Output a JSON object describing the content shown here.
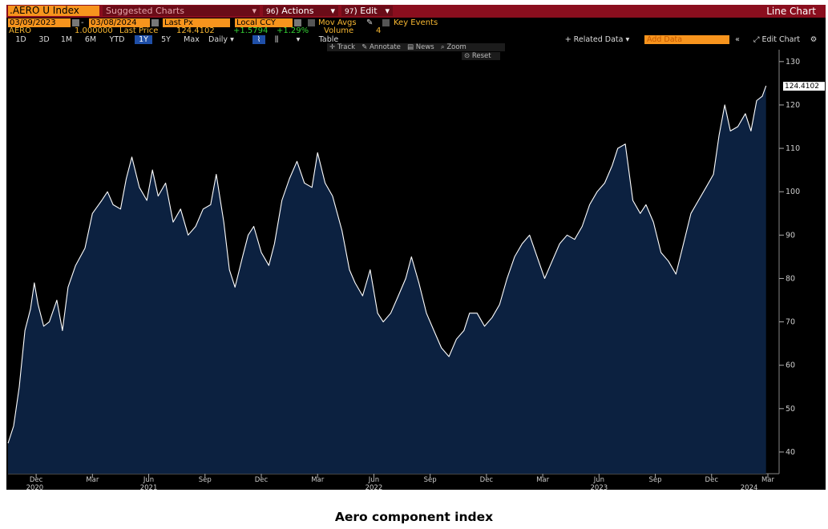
{
  "header": {
    "ticker": ".AERO U Index",
    "suggested_charts": "Suggested Charts",
    "actions_num": "96",
    "actions": "Actions",
    "edit_num": "97",
    "edit": "Edit",
    "chart_type": "Line Chart"
  },
  "settings": {
    "start_date": "03/09/2023",
    "end_date": "03/08/2024",
    "field": "Last Px",
    "currency": "Local CCY",
    "mov_avgs": "Mov Avgs",
    "key_events": "Key Events"
  },
  "legend": {
    "security": "AERO",
    "multiplier": "1.000000",
    "last_price_label": "Last Price",
    "last_price": "124.4102",
    "change": "+1.5794",
    "change_pct": "+1.29%",
    "volume_label": "Volume",
    "volume": "4"
  },
  "toolbar": {
    "ranges": [
      "1D",
      "3D",
      "1M",
      "6M",
      "YTD",
      "1Y",
      "5Y",
      "Max"
    ],
    "active_range": "1Y",
    "frequency": "Daily",
    "table": "Table",
    "related_data": "+ Related Data",
    "add_data_placeholder": "Add Data",
    "edit_chart": "Edit Chart"
  },
  "subtoolbar": {
    "track": "Track",
    "annotate": "Annotate",
    "news": "News",
    "zoom": "Zoom",
    "reset": "Reset"
  },
  "colors": {
    "background": "#000000",
    "area_fill": "#0c2140",
    "line": "#ffffff",
    "header_bar": "#8a0e1e",
    "accent_orange": "#f7941d",
    "positive_green": "#35d335"
  },
  "chart_data": {
    "type": "area",
    "y_axis_side": "right",
    "ylim": [
      35,
      132
    ],
    "y_ticks": [
      40,
      50,
      60,
      70,
      80,
      90,
      100,
      110,
      120,
      130
    ],
    "last_value_label": "124.4102",
    "x_tick_labels": [
      "Dec",
      "Mar",
      "Jun",
      "Sep",
      "Dec",
      "Mar",
      "Jun",
      "Sep",
      "Dec",
      "Mar",
      "Jun",
      "Sep",
      "Dec",
      "Mar"
    ],
    "x_tick_pos": [
      1.5,
      4.5,
      7.5,
      10.5,
      13.5,
      16.5,
      19.5,
      22.5,
      25.5,
      28.5,
      31.5,
      34.5,
      37.5,
      40.5
    ],
    "year_labels": [
      "2020",
      "2021",
      "2022",
      "2023",
      "2024"
    ],
    "year_pos": [
      1,
      7.5,
      19.5,
      31.5,
      39.5
    ],
    "xlim": [
      0,
      40.5
    ],
    "series": [
      {
        "x": [
          0,
          0.3,
          0.6,
          0.9,
          1.2,
          1.4,
          1.6,
          1.9,
          2.2,
          2.6,
          2.9,
          3.2,
          3.6,
          4.1,
          4.5,
          5.0,
          5.3,
          5.6,
          6.0,
          6.3,
          6.6,
          7.0,
          7.4,
          7.7,
          8.0,
          8.4,
          8.8,
          9.2,
          9.6,
          10.0,
          10.4,
          10.8,
          11.1,
          11.5,
          11.8,
          12.1,
          12.5,
          12.8,
          13.1,
          13.5,
          13.9,
          14.2,
          14.6,
          15.0,
          15.4,
          15.8,
          16.2,
          16.5,
          16.9,
          17.3,
          17.8,
          18.2,
          18.5,
          18.9,
          19.3,
          19.7,
          20.0,
          20.4,
          20.8,
          21.2,
          21.5,
          21.9,
          22.3,
          22.7,
          23.1,
          23.5,
          23.9,
          24.3,
          24.6,
          25.0,
          25.4,
          25.8,
          26.2,
          26.6,
          27.0,
          27.4,
          27.8,
          28.2,
          28.6,
          29.0,
          29.4,
          29.8,
          30.2,
          30.6,
          31.0,
          31.4,
          31.8,
          32.2,
          32.5,
          32.9,
          33.3,
          33.7,
          34.0,
          34.4,
          34.8,
          35.2,
          35.6,
          36.0,
          36.4,
          36.8,
          37.2,
          37.6,
          37.9,
          38.2,
          38.5,
          38.9,
          39.3,
          39.6,
          39.9,
          40.2,
          40.4
        ],
        "y": [
          42,
          46,
          55,
          68,
          73,
          79,
          74,
          69,
          70,
          75,
          68,
          78,
          83,
          87,
          95,
          98,
          100,
          97,
          96,
          103,
          108,
          101,
          98,
          105,
          99,
          102,
          93,
          96,
          90,
          92,
          96,
          97,
          104,
          93,
          82,
          78,
          85,
          90,
          92,
          86,
          83,
          88,
          98,
          103,
          107,
          102,
          101,
          109,
          102,
          99,
          91,
          82,
          79,
          76,
          82,
          72,
          70,
          72,
          76,
          80,
          85,
          79,
          72,
          68,
          64,
          62,
          66,
          68,
          72,
          72,
          69,
          71,
          74,
          80,
          85,
          88,
          90,
          85,
          80,
          84,
          88,
          90,
          89,
          92,
          97,
          100,
          102,
          106,
          110,
          111,
          98,
          95,
          97,
          93,
          86,
          84,
          81,
          88,
          95,
          98,
          101,
          104,
          113,
          120,
          114,
          115,
          118,
          114,
          121,
          122,
          124.4
        ]
      }
    ]
  }
}
